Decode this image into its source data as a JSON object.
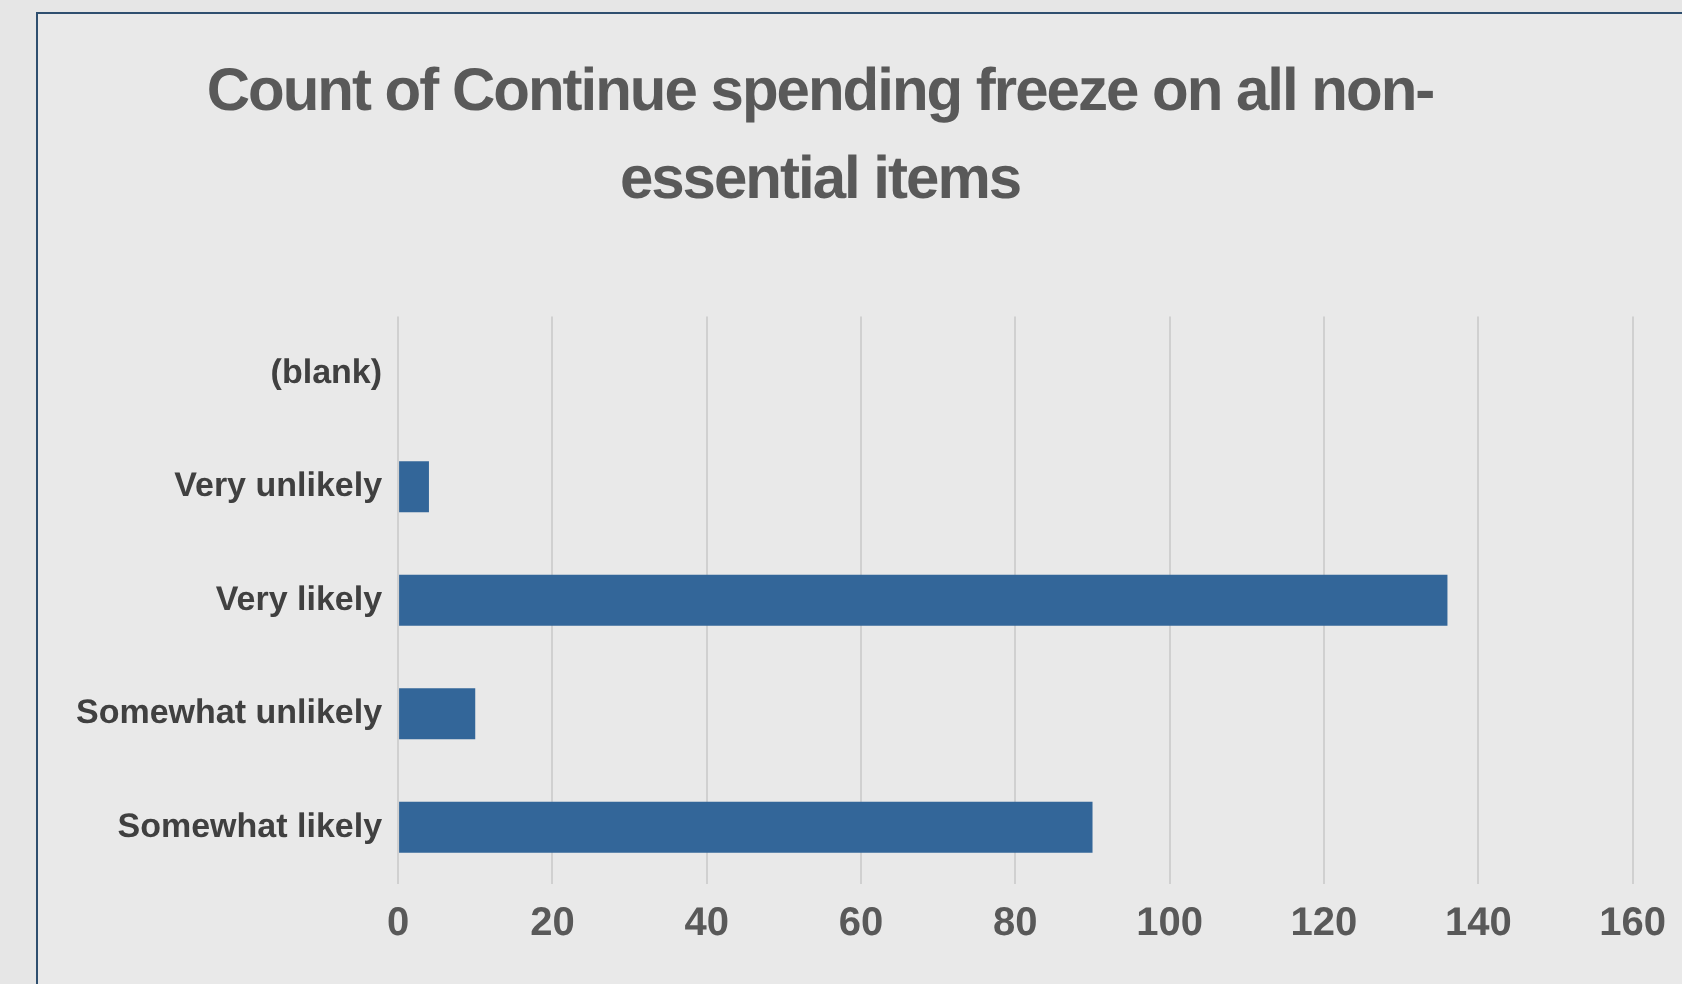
{
  "chart_data": {
    "type": "bar",
    "orientation": "horizontal",
    "title": "Count of Continue spending freeze on all non-essential items",
    "categories": [
      "(blank)",
      "Very unlikely",
      "Very likely",
      "Somewhat unlikely",
      "Somewhat likely"
    ],
    "values": [
      null,
      4,
      136,
      10,
      90
    ],
    "color": "#336699",
    "xlim": [
      0,
      160
    ],
    "xticks": [
      0,
      20,
      40,
      60,
      80,
      100,
      120,
      140,
      160
    ],
    "grid": "x",
    "legend": false
  }
}
